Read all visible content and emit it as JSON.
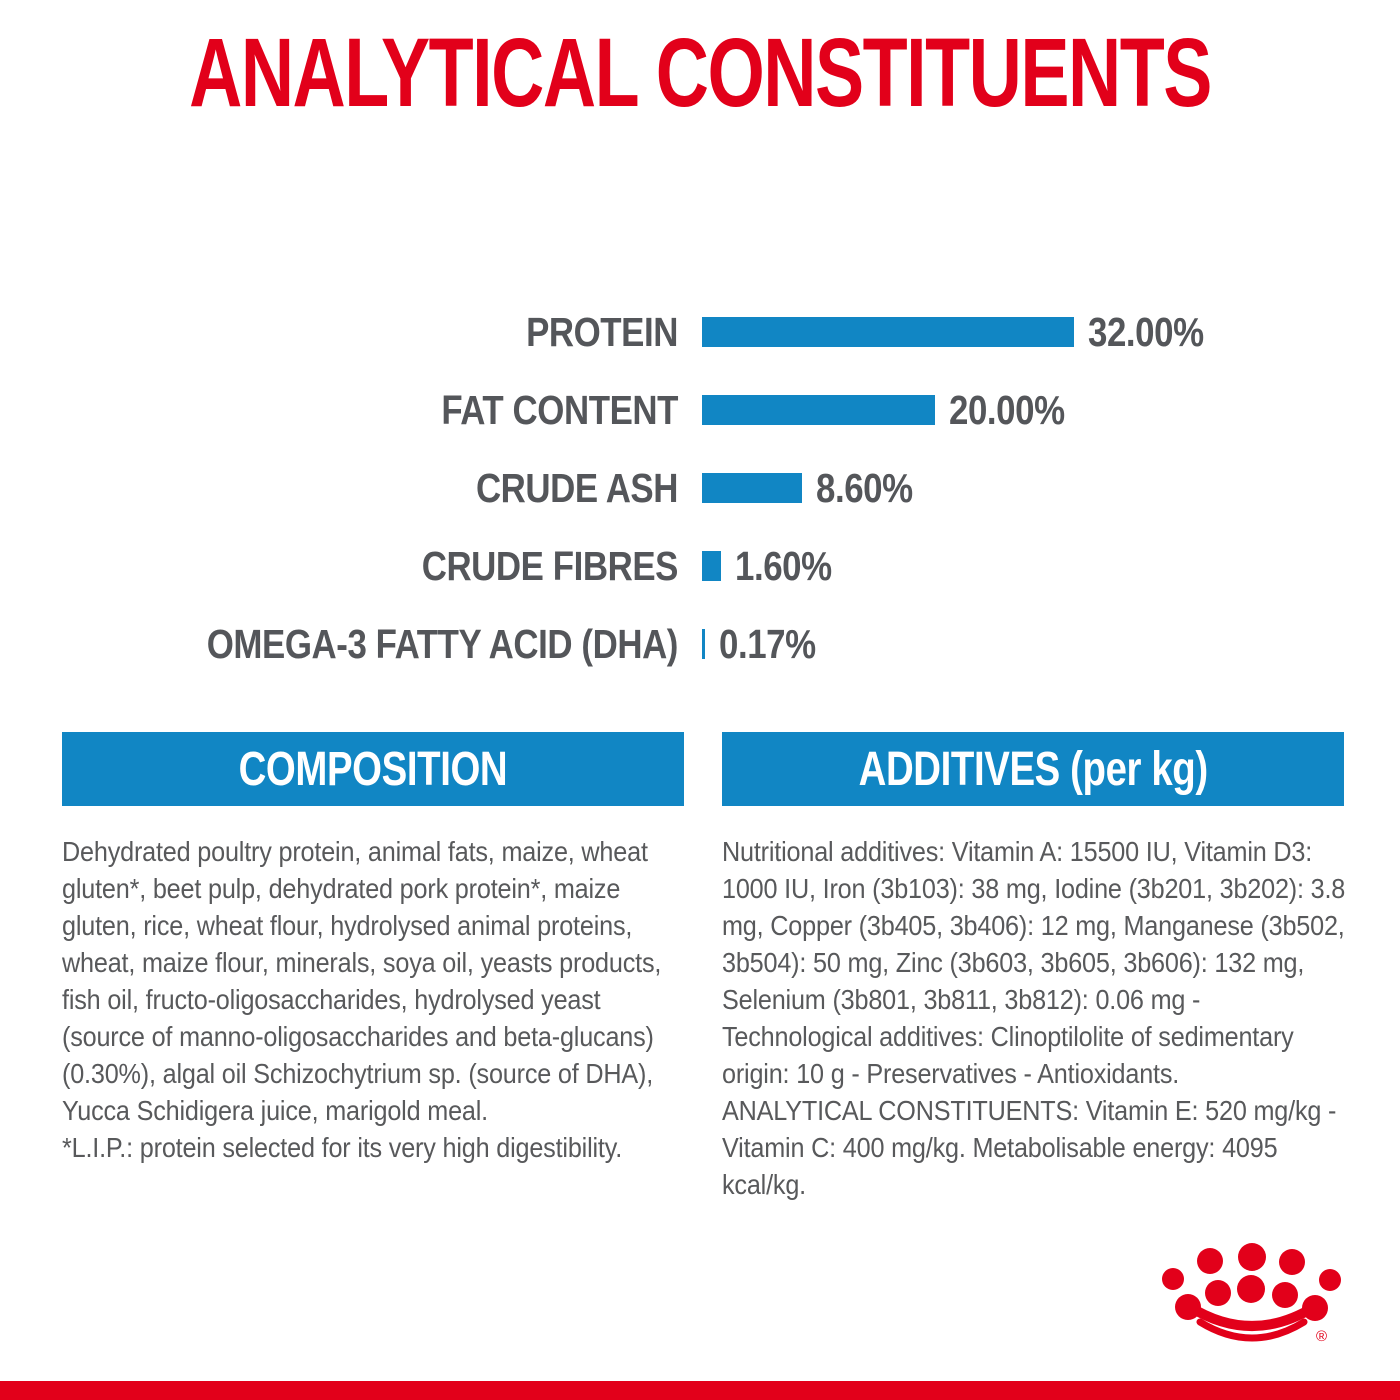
{
  "title": "ANALYTICAL CONSTITUENTS",
  "colors": {
    "brand_red": "#E2001A",
    "bar_blue": "#1186C4",
    "label_gray": "#54565A",
    "body_gray": "#58595B"
  },
  "chart_data": {
    "type": "bar",
    "orientation": "horizontal",
    "title": "ANALYTICAL CONSTITUENTS",
    "categories": [
      "PROTEIN",
      "FAT CONTENT",
      "CRUDE ASH",
      "CRUDE FIBRES",
      "OMEGA-3 FATTY ACID (DHA)"
    ],
    "values": [
      32.0,
      20.0,
      8.6,
      1.6,
      0.17
    ],
    "value_labels": [
      "32.00%",
      "20.00%",
      "8.60%",
      "1.60%",
      "0.17%"
    ],
    "unit": "%",
    "xlabel": "",
    "ylabel": "",
    "xlim": [
      0,
      32
    ],
    "grid": false,
    "legend": false,
    "bar_color": "#1186C4",
    "label_color": "#54565A"
  },
  "sections": {
    "composition": {
      "header": "COMPOSITION",
      "body": "Dehydrated poultry protein, animal fats, maize, wheat gluten*, beet pulp, dehydrated pork protein*, maize gluten, rice, wheat flour, hydrolysed animal proteins, wheat, maize flour, minerals, soya oil, yeasts products, fish oil, fructo-oligosaccharides, hydrolysed yeast (source of manno-oligosaccharides and beta-glucans) (0.30%), algal oil Schizochytrium sp. (source of DHA), Yucca Schidigera juice, marigold meal.",
      "footnote": "*L.I.P.: protein selected for its very high digestibility."
    },
    "additives": {
      "header": "ADDITIVES (per kg)",
      "body": "Nutritional additives: Vitamin A: 15500 IU, Vitamin D3: 1000 IU, Iron (3b103): 38 mg, Iodine (3b201, 3b202): 3.8 mg, Copper (3b405, 3b406): 12 mg, Manganese (3b502, 3b504): 50 mg, Zinc (3b603, 3b605, 3b606): 132 mg, Selenium (3b801, 3b811, 3b812): 0.06 mg - Technological additives: Clinoptilolite of sedimentary origin: 10 g - Preservatives - Antioxidants.",
      "analytical": "ANALYTICAL CONSTITUENTS: Vitamin E: 520 mg/kg - Vitamin C: 400 mg/kg. Metabolisable energy: 4095 kcal/kg."
    }
  },
  "footer": {
    "logo": "royal-canin-crown-logo",
    "registered_mark": "®"
  }
}
